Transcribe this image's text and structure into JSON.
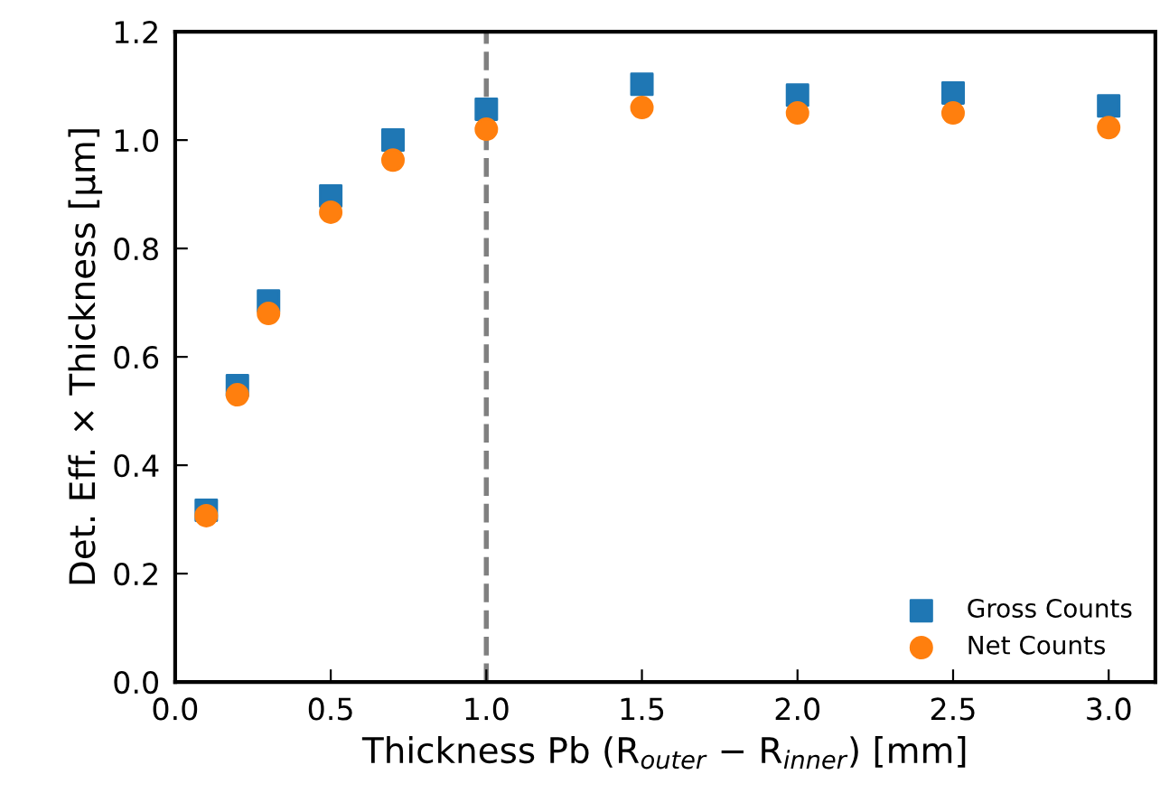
{
  "chart_data": {
    "type": "scatter",
    "xlabel": "Thickness Pb (R$_{outer}$ − R$_{inner}$) [mm]",
    "ylabel": "Det. Eff. × Thickness [μm]",
    "x": [
      0.1,
      0.2,
      0.3,
      0.5,
      0.7,
      1.0,
      1.5,
      2.0,
      2.5,
      3.0
    ],
    "series": [
      {
        "name": "Gross Counts",
        "color": "#1f77b4",
        "marker": "square",
        "values": [
          0.317,
          0.547,
          0.703,
          0.897,
          1.0,
          1.057,
          1.103,
          1.083,
          1.087,
          1.063
        ]
      },
      {
        "name": "Net Counts",
        "color": "#ff7f0e",
        "marker": "circle",
        "values": [
          0.307,
          0.53,
          0.68,
          0.867,
          0.963,
          1.02,
          1.06,
          1.05,
          1.05,
          1.023
        ]
      }
    ],
    "xlim": [
      0,
      3.15
    ],
    "xticks": [
      {
        "value": 0,
        "label": "0.0"
      },
      0.5,
      {
        "value": 1,
        "label": "1.0"
      },
      1.5,
      {
        "value": 2,
        "label": "2.0"
      },
      2.5,
      {
        "value": 3,
        "label": "3.0"
      }
    ],
    "ylim": [
      0,
      1.2
    ],
    "yticks": [
      {
        "value": 0,
        "label": "0.0"
      },
      0.2,
      0.4,
      0.6,
      0.8,
      {
        "value": 1,
        "label": "1.0"
      },
      1.2
    ],
    "ref_lines": [
      {
        "axis": "x",
        "value": 1.0,
        "color": "#808080",
        "line_style": "dashed"
      }
    ],
    "legend": "bottom right",
    "grid": false
  }
}
